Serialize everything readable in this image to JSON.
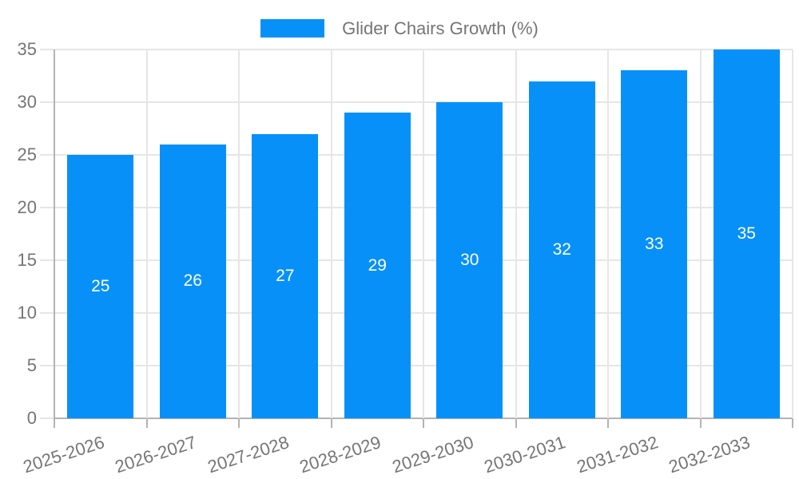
{
  "chart_data": {
    "type": "bar",
    "legend_label": "Glider Chairs Growth (%)",
    "categories": [
      "2025-2026",
      "2026-2027",
      "2027-2028",
      "2028-2029",
      "2029-2030",
      "2030-2031",
      "2031-2032",
      "2032-2033"
    ],
    "values": [
      25,
      26,
      27,
      29,
      30,
      32,
      33,
      35
    ],
    "ylabel": "",
    "xlabel": "",
    "ylim": [
      0,
      35
    ],
    "ytick_step": 5,
    "y_tick_labels": [
      "0",
      "5",
      "10",
      "15",
      "20",
      "25",
      "30",
      "35"
    ],
    "grid": true,
    "legend_position": "top-center",
    "value_labels": "inside-center",
    "x_label_rotation_deg": -18,
    "colors": {
      "bar": "#0791f8",
      "axis_text": "#757575",
      "grid": "#e6e6e6",
      "axis_line": "#b3b3b3",
      "value_label": "#ffffff",
      "background": "#ffffff"
    }
  }
}
